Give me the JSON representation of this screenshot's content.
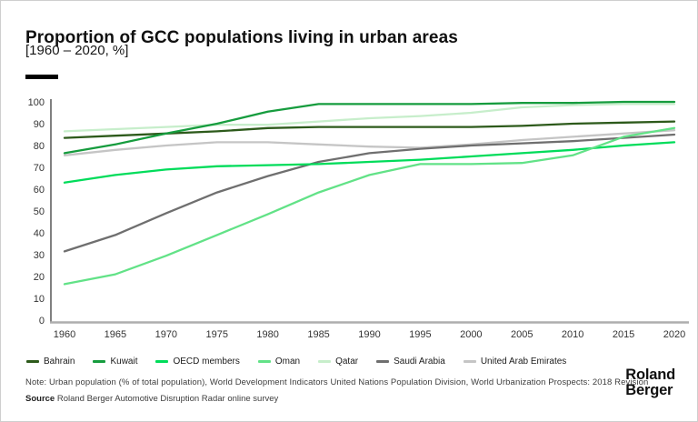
{
  "header": {
    "title": "Proportion of GCC populations living in urban areas",
    "subtitle": "[1960 – 2020, %]"
  },
  "chart_data": {
    "type": "line",
    "title": "Proportion of GCC populations living in urban areas",
    "subtitle": "[1960 – 2020, %]",
    "x": [
      1960,
      1965,
      1970,
      1975,
      1980,
      1985,
      1990,
      1995,
      2000,
      2005,
      2010,
      2015,
      2020
    ],
    "x_tick_labels": [
      "1960",
      "1965",
      "1970",
      "1975",
      "1980",
      "1985",
      "1990",
      "1995",
      "2000",
      "2005",
      "2010",
      "2015",
      "2020"
    ],
    "y_ticks": [
      0,
      10,
      20,
      30,
      40,
      50,
      60,
      70,
      80,
      90,
      100
    ],
    "xlim": [
      1960,
      2020
    ],
    "ylim": [
      0,
      100
    ],
    "grid": false,
    "legend_position": "bottom",
    "series": [
      {
        "name": "Bahrain",
        "color": "#2d5a1b",
        "values": [
          83.5,
          84.5,
          85.5,
          86.5,
          88,
          88.5,
          88.5,
          88.5,
          88.5,
          89,
          90,
          90.5,
          91
        ]
      },
      {
        "name": "Kuwait",
        "color": "#169c3e",
        "values": [
          76.5,
          80.5,
          85.5,
          90,
          95.5,
          99,
          99,
          99,
          99,
          99.5,
          99.5,
          100,
          100
        ]
      },
      {
        "name": "OECD members",
        "color": "#00dc5a",
        "values": [
          63,
          66.5,
          69,
          70.5,
          71,
          71.5,
          72.5,
          73.5,
          75,
          76.5,
          78,
          80,
          81.5
        ]
      },
      {
        "name": "Oman",
        "color": "#62e287",
        "values": [
          16.5,
          21,
          29.5,
          39,
          48.5,
          58.5,
          66.5,
          71.5,
          71.5,
          72,
          75.5,
          84,
          88
        ]
      },
      {
        "name": "Qatar",
        "color": "#c7eecb",
        "values": [
          86.5,
          87.5,
          88.5,
          89.5,
          89.5,
          91,
          92.5,
          93.5,
          95,
          97.5,
          98.5,
          99,
          99
        ]
      },
      {
        "name": "Saudi Arabia",
        "color": "#6f6f6f",
        "values": [
          31.5,
          39,
          49,
          58.5,
          66,
          72.5,
          76.5,
          78.5,
          80,
          81,
          82,
          83.5,
          85
        ]
      },
      {
        "name": "United Arab Emirates",
        "color": "#c5c5c5",
        "values": [
          75.5,
          78,
          80,
          81.5,
          81.5,
          80.5,
          79.5,
          79,
          80.5,
          82.5,
          84,
          85.5,
          87
        ]
      }
    ],
    "draw_order": [
      "United Arab Emirates",
      "Saudi Arabia",
      "Qatar",
      "Bahrain",
      "Kuwait",
      "OECD members",
      "Oman"
    ]
  },
  "footer": {
    "note": "Note:  Urban population (% of total population), World Development Indicators United Nations Population Division, World Urbanization Prospects: 2018 Revision",
    "source_label": "Source",
    "source_text": "Roland Berger Automotive Disruption Radar online survey",
    "logo_line1": "Roland",
    "logo_line2": "Berger"
  }
}
